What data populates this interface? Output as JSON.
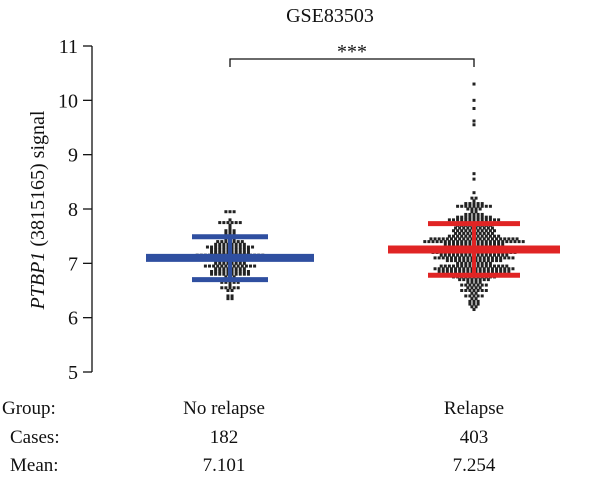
{
  "chart_data": {
    "type": "scatter",
    "subtype": "dot-plot with mean and SD bars",
    "title": "GSE83503",
    "ylabel_italic": "PTBP1",
    "ylabel_rest": " (3815165) signal",
    "ylim": [
      5,
      11
    ],
    "yticks": [
      5,
      6,
      7,
      8,
      9,
      10,
      11
    ],
    "significance": "***",
    "groups": [
      {
        "name": "No relapse",
        "n": 182,
        "mean": 7.101,
        "sd_low": 6.7,
        "sd_high": 7.49,
        "min": 6.14,
        "max": 8.02,
        "color": "#2f4fa0"
      },
      {
        "name": "Relapse",
        "n": 403,
        "mean": 7.254,
        "sd_low": 6.78,
        "sd_high": 7.73,
        "min": 6.16,
        "max": 8.35,
        "outliers": [
          8.55,
          8.65,
          9.55,
          9.62,
          9.85,
          10.0,
          10.3
        ],
        "color": "#e02424"
      }
    ]
  },
  "table": {
    "group_label": "Group:",
    "cases_label": "Cases:",
    "mean_label": "Mean:",
    "group_values": [
      "No relapse",
      "Relapse"
    ],
    "cases_values": [
      "182",
      "403"
    ],
    "mean_values": [
      "7.101",
      "7.254"
    ]
  }
}
